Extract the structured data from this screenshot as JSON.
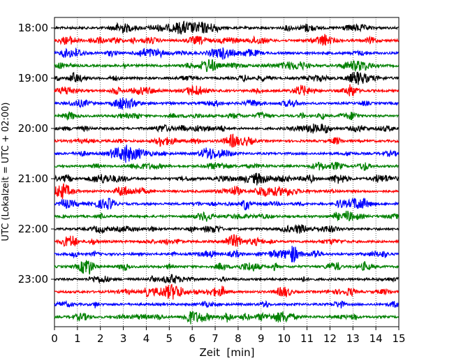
{
  "chart_data": {
    "type": "line",
    "subtype": "seismogram-helicorder",
    "xlabel": "Zeit  [min]",
    "ylabel": "UTC (Lokalzeit = UTC + 02:00)",
    "xlim": [
      0,
      15
    ],
    "x_ticks": [
      0,
      1,
      2,
      3,
      4,
      5,
      6,
      7,
      8,
      9,
      10,
      11,
      12,
      13,
      14,
      15
    ],
    "grid": "vertical dotted lines at each minute",
    "y_ticks": [
      "18:00",
      "19:00",
      "20:00",
      "21:00",
      "22:00",
      "23:00"
    ],
    "trace_colors": [
      "#000000",
      "#ff0000",
      "#0000ff",
      "#008000"
    ],
    "traces_per_hour": 4,
    "trace_count": 24,
    "rows": [
      {
        "start": "18:00",
        "color": "#000000"
      },
      {
        "start": "18:15",
        "color": "#ff0000"
      },
      {
        "start": "18:30",
        "color": "#0000ff"
      },
      {
        "start": "18:45",
        "color": "#008000"
      },
      {
        "start": "19:00",
        "color": "#000000"
      },
      {
        "start": "19:15",
        "color": "#ff0000"
      },
      {
        "start": "19:30",
        "color": "#0000ff"
      },
      {
        "start": "19:45",
        "color": "#008000"
      },
      {
        "start": "20:00",
        "color": "#000000"
      },
      {
        "start": "20:15",
        "color": "#ff0000"
      },
      {
        "start": "20:30",
        "color": "#0000ff"
      },
      {
        "start": "20:45",
        "color": "#008000"
      },
      {
        "start": "21:00",
        "color": "#000000"
      },
      {
        "start": "21:15",
        "color": "#ff0000"
      },
      {
        "start": "21:30",
        "color": "#0000ff"
      },
      {
        "start": "21:45",
        "color": "#008000"
      },
      {
        "start": "22:00",
        "color": "#000000"
      },
      {
        "start": "22:15",
        "color": "#ff0000"
      },
      {
        "start": "22:30",
        "color": "#0000ff"
      },
      {
        "start": "22:45",
        "color": "#008000"
      },
      {
        "start": "23:00",
        "color": "#000000"
      },
      {
        "start": "23:15",
        "color": "#ff0000"
      },
      {
        "start": "23:30",
        "color": "#0000ff"
      },
      {
        "start": "23:45",
        "color": "#008000"
      }
    ]
  }
}
